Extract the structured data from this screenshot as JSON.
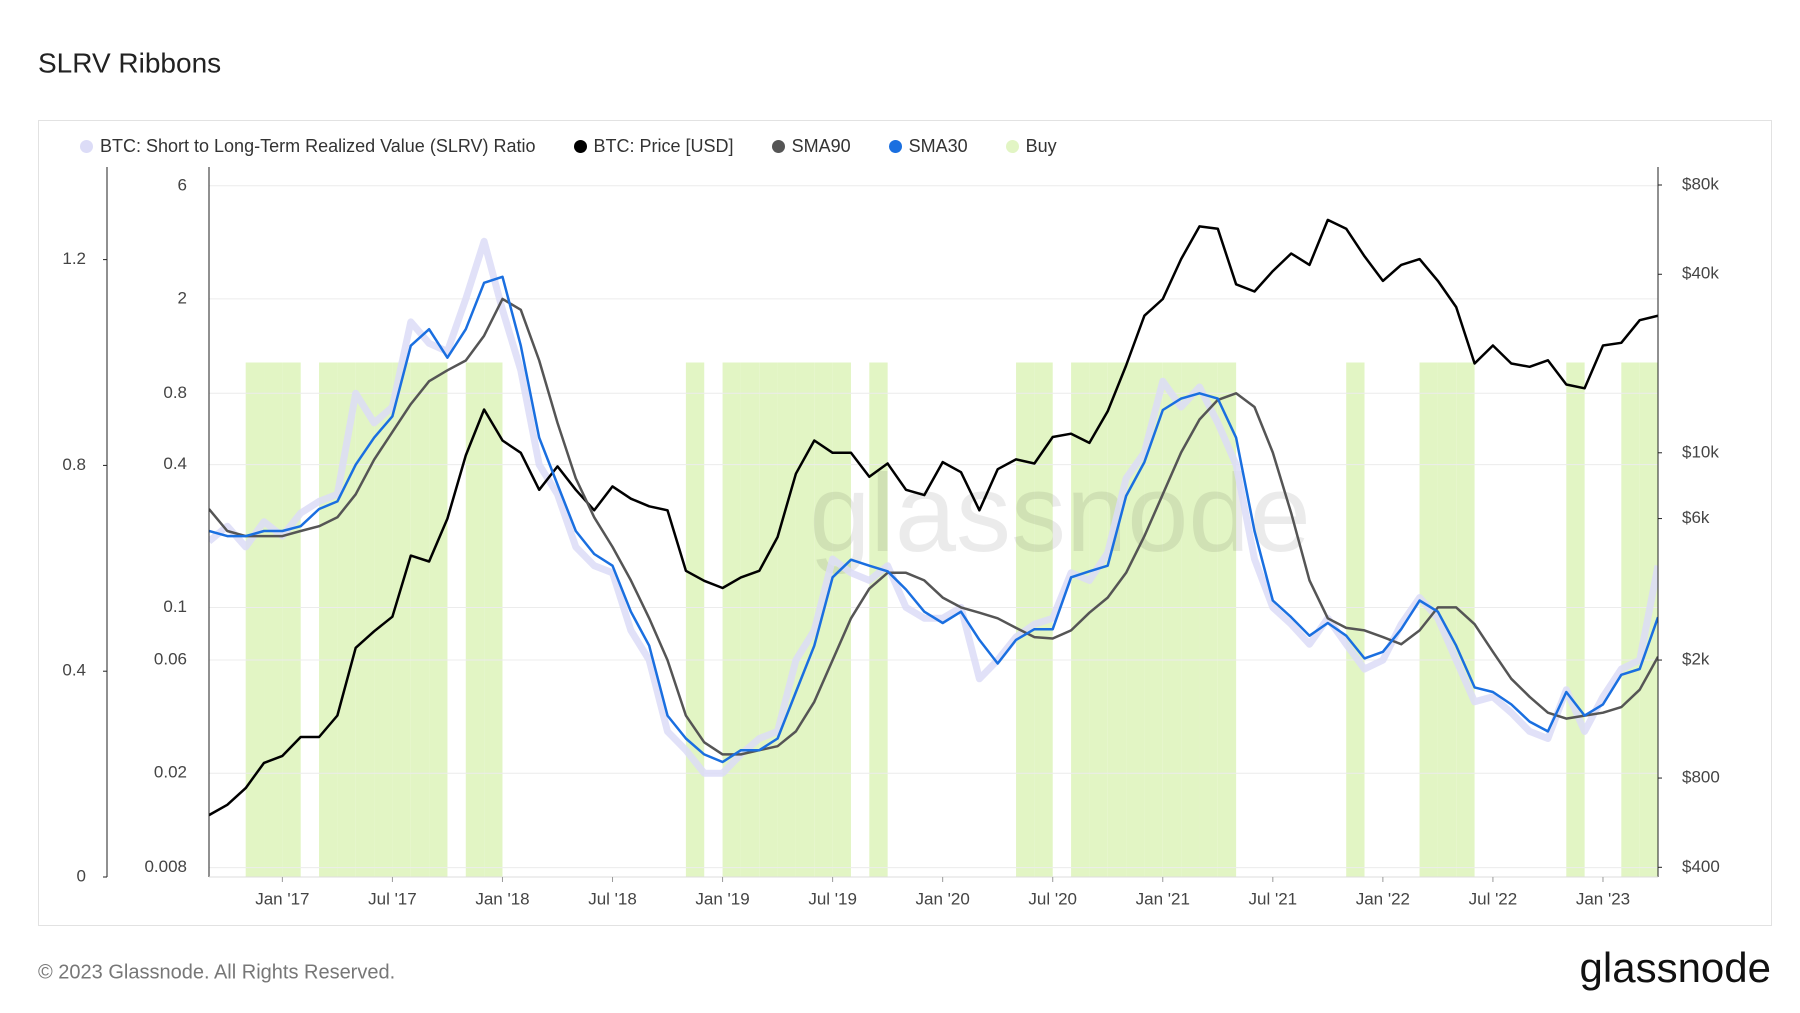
{
  "chart_data": {
    "type": "line",
    "title": "SLRV Ribbons",
    "watermark": "glassnode",
    "footer": "© 2023 Glassnode. All Rights Reserved.",
    "logo": "glassnode",
    "x": [
      "2016-09",
      "2016-10",
      "2016-11",
      "2016-12",
      "2017-01",
      "2017-02",
      "2017-03",
      "2017-04",
      "2017-05",
      "2017-06",
      "2017-07",
      "2017-08",
      "2017-09",
      "2017-10",
      "2017-11",
      "2017-12",
      "2018-01",
      "2018-02",
      "2018-03",
      "2018-04",
      "2018-05",
      "2018-06",
      "2018-07",
      "2018-08",
      "2018-09",
      "2018-10",
      "2018-11",
      "2018-12",
      "2019-01",
      "2019-02",
      "2019-03",
      "2019-04",
      "2019-05",
      "2019-06",
      "2019-07",
      "2019-08",
      "2019-09",
      "2019-10",
      "2019-11",
      "2019-12",
      "2020-01",
      "2020-02",
      "2020-03",
      "2020-04",
      "2020-05",
      "2020-06",
      "2020-07",
      "2020-08",
      "2020-09",
      "2020-10",
      "2020-11",
      "2020-12",
      "2021-01",
      "2021-02",
      "2021-03",
      "2021-04",
      "2021-05",
      "2021-06",
      "2021-07",
      "2021-08",
      "2021-09",
      "2021-10",
      "2021-11",
      "2021-12",
      "2022-01",
      "2022-02",
      "2022-03",
      "2022-04",
      "2022-05",
      "2022-06",
      "2022-07",
      "2022-08",
      "2022-09",
      "2022-10",
      "2022-11",
      "2022-12",
      "2023-01",
      "2023-02",
      "2023-03",
      "2023-04"
    ],
    "xlim": [
      "2016-09",
      "2023-04"
    ],
    "xticks": [
      {
        "value": "2017-01",
        "label": "Jan '17"
      },
      {
        "value": "2017-07",
        "label": "Jul '17"
      },
      {
        "value": "2018-01",
        "label": "Jan '18"
      },
      {
        "value": "2018-07",
        "label": "Jul '18"
      },
      {
        "value": "2019-01",
        "label": "Jan '19"
      },
      {
        "value": "2019-07",
        "label": "Jul '19"
      },
      {
        "value": "2020-01",
        "label": "Jan '20"
      },
      {
        "value": "2020-07",
        "label": "Jul '20"
      },
      {
        "value": "2021-01",
        "label": "Jan '21"
      },
      {
        "value": "2021-07",
        "label": "Jul '21"
      },
      {
        "value": "2022-01",
        "label": "Jan '22"
      },
      {
        "value": "2022-07",
        "label": "Jul '22"
      },
      {
        "value": "2023-01",
        "label": "Jan '23"
      }
    ],
    "ylog": true,
    "ylim": [
      0.0073,
      7.2
    ],
    "yticks": [
      0.008,
      0.02,
      0.06,
      0.1,
      0.4,
      0.8,
      2,
      6
    ],
    "y2log": true,
    "y2lim": [
      371,
      92000
    ],
    "y2ticks": [
      {
        "value": 400,
        "label": "$400"
      },
      {
        "value": 800,
        "label": "$800"
      },
      {
        "value": 2000,
        "label": "$2k"
      },
      {
        "value": 6000,
        "label": "$6k"
      },
      {
        "value": 10000,
        "label": "$10k"
      },
      {
        "value": 40000,
        "label": "$40k"
      },
      {
        "value": 80000,
        "label": "$80k"
      }
    ],
    "y3lim": [
      0,
      1.38
    ],
    "y3ticks": [
      0,
      0.4,
      0.8,
      1.2
    ],
    "grid": true,
    "series": [
      {
        "name": "BTC: Short to Long-Term Realized Value (SLRV) Ratio",
        "color": "#dcdcf7",
        "axis": "y",
        "values": [
          0.19,
          0.22,
          0.18,
          0.23,
          0.2,
          0.25,
          0.28,
          0.3,
          0.8,
          0.6,
          0.7,
          1.6,
          1.3,
          1.2,
          2.0,
          3.5,
          1.8,
          1.0,
          0.4,
          0.3,
          0.18,
          0.15,
          0.14,
          0.08,
          0.06,
          0.03,
          0.025,
          0.02,
          0.02,
          0.024,
          0.028,
          0.03,
          0.06,
          0.08,
          0.16,
          0.14,
          0.13,
          0.15,
          0.1,
          0.09,
          0.09,
          0.1,
          0.05,
          0.06,
          0.075,
          0.085,
          0.09,
          0.14,
          0.13,
          0.17,
          0.35,
          0.45,
          0.9,
          0.7,
          0.85,
          0.6,
          0.4,
          0.16,
          0.1,
          0.085,
          0.07,
          0.09,
          0.07,
          0.055,
          0.06,
          0.085,
          0.11,
          0.09,
          0.06,
          0.04,
          0.042,
          0.036,
          0.03,
          0.028,
          0.045,
          0.03,
          0.042,
          0.055,
          0.06,
          0.15
        ]
      },
      {
        "name": "BTC: Price [USD]",
        "color": "#000000",
        "axis": "y2",
        "values": [
          600,
          650,
          740,
          900,
          950,
          1100,
          1100,
          1300,
          2200,
          2500,
          2800,
          4500,
          4300,
          6000,
          9800,
          14000,
          11000,
          10000,
          7500,
          9000,
          7500,
          6400,
          7700,
          7000,
          6600,
          6400,
          4000,
          3700,
          3500,
          3800,
          4000,
          5200,
          8500,
          11000,
          10000,
          10000,
          8300,
          9200,
          7500,
          7200,
          9300,
          8600,
          6400,
          8800,
          9500,
          9200,
          11300,
          11600,
          10800,
          13800,
          19700,
          29000,
          33000,
          45000,
          58000,
          57000,
          37000,
          35000,
          41000,
          47000,
          43000,
          61000,
          57000,
          46000,
          38000,
          43000,
          45000,
          38000,
          31000,
          20000,
          23000,
          20000,
          19500,
          20500,
          17000,
          16500,
          23000,
          23500,
          28000,
          29000
        ]
      },
      {
        "name": "SMA90",
        "color": "#555555",
        "axis": "y",
        "values": [
          0.26,
          0.21,
          0.2,
          0.2,
          0.2,
          0.21,
          0.22,
          0.24,
          0.3,
          0.42,
          0.55,
          0.72,
          0.9,
          1.0,
          1.1,
          1.4,
          2.0,
          1.8,
          1.1,
          0.6,
          0.35,
          0.24,
          0.18,
          0.13,
          0.09,
          0.06,
          0.035,
          0.027,
          0.024,
          0.024,
          0.025,
          0.026,
          0.03,
          0.04,
          0.06,
          0.09,
          0.12,
          0.14,
          0.14,
          0.13,
          0.11,
          0.1,
          0.095,
          0.09,
          0.082,
          0.075,
          0.074,
          0.08,
          0.095,
          0.11,
          0.14,
          0.2,
          0.3,
          0.45,
          0.62,
          0.75,
          0.8,
          0.7,
          0.45,
          0.25,
          0.13,
          0.09,
          0.082,
          0.08,
          0.075,
          0.07,
          0.08,
          0.1,
          0.1,
          0.085,
          0.065,
          0.05,
          0.042,
          0.036,
          0.034,
          0.035,
          0.036,
          0.038,
          0.045,
          0.062
        ]
      },
      {
        "name": "SMA30",
        "color": "#1a6fe0",
        "axis": "y",
        "values": [
          0.21,
          0.2,
          0.2,
          0.21,
          0.21,
          0.22,
          0.26,
          0.28,
          0.4,
          0.52,
          0.64,
          1.27,
          1.49,
          1.13,
          1.49,
          2.34,
          2.48,
          1.27,
          0.52,
          0.33,
          0.21,
          0.168,
          0.15,
          0.096,
          0.069,
          0.035,
          0.028,
          0.024,
          0.0223,
          0.025,
          0.025,
          0.028,
          0.044,
          0.069,
          0.134,
          0.159,
          0.15,
          0.142,
          0.119,
          0.096,
          0.086,
          0.096,
          0.073,
          0.058,
          0.073,
          0.081,
          0.081,
          0.134,
          0.142,
          0.15,
          0.295,
          0.41,
          0.68,
          0.76,
          0.8,
          0.76,
          0.52,
          0.21,
          0.107,
          0.091,
          0.076,
          0.086,
          0.076,
          0.061,
          0.065,
          0.081,
          0.107,
          0.096,
          0.069,
          0.046,
          0.044,
          0.039,
          0.033,
          0.03,
          0.044,
          0.035,
          0.039,
          0.052,
          0.055,
          0.091
        ]
      },
      {
        "name": "Buy",
        "color": "#e2f5c4",
        "axis": "y3",
        "style": "band",
        "values": [
          0,
          0,
          1,
          1,
          1,
          0,
          1,
          1,
          1,
          1,
          1,
          1,
          1,
          0,
          1,
          1,
          0,
          0,
          0,
          0,
          0,
          0,
          0,
          0,
          0,
          0,
          1,
          0,
          1,
          1,
          1,
          1,
          1,
          1,
          1,
          0,
          1,
          0,
          0,
          0,
          0,
          0,
          0,
          0,
          1,
          1,
          0,
          1,
          1,
          1,
          1,
          1,
          1,
          1,
          1,
          1,
          0,
          0,
          0,
          0,
          0,
          0,
          1,
          0,
          0,
          0,
          1,
          1,
          1,
          0,
          0,
          0,
          0,
          0,
          1,
          0,
          0,
          1,
          1,
          1
        ]
      }
    ]
  }
}
